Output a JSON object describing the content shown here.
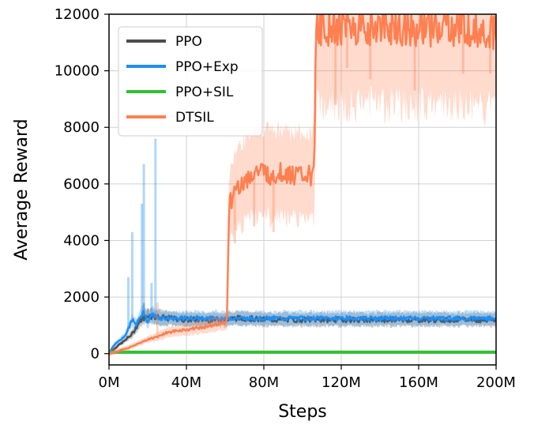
{
  "chart_data": {
    "type": "line",
    "title": "",
    "xlabel": "Steps",
    "ylabel": "Average Reward",
    "xlim": [
      0,
      200
    ],
    "ylim": [
      -400,
      12000
    ],
    "x_unit": "M steps",
    "x_ticks": [
      0,
      40,
      80,
      120,
      160,
      200
    ],
    "x_tick_labels": [
      "0M",
      "40M",
      "80M",
      "120M",
      "160M",
      "200M"
    ],
    "y_ticks": [
      0,
      2000,
      4000,
      6000,
      8000,
      10000,
      12000
    ],
    "y_tick_labels": [
      "0",
      "2000",
      "4000",
      "6000",
      "8000",
      "10000",
      "12000"
    ],
    "grid": true,
    "legend_position": "top-left",
    "series": [
      {
        "name": "PPO",
        "color": "#4d4d4d",
        "x": [
          0,
          4,
          8,
          12,
          16,
          20,
          24,
          30,
          40,
          50,
          60,
          65,
          70,
          80,
          90,
          100,
          106,
          110,
          200
        ],
        "y": [
          0,
          250,
          450,
          700,
          1150,
          1350,
          1300,
          1250,
          1200,
          1200,
          1200,
          1250,
          1250,
          1200,
          1200,
          1200,
          1200,
          1200,
          1200
        ]
      },
      {
        "name": "PPO+Exp",
        "color": "#1f8ef1",
        "x": [
          0,
          2,
          5,
          8,
          10,
          12,
          14,
          16,
          18,
          20,
          22,
          24,
          26,
          30,
          40,
          60,
          80,
          100,
          120,
          200
        ],
        "y": [
          0,
          250,
          450,
          600,
          900,
          1200,
          1000,
          1300,
          1500,
          1100,
          1400,
          1300,
          1250,
          1250,
          1250,
          1250,
          1250,
          1250,
          1250,
          1250
        ]
      },
      {
        "name": "PPO+SIL",
        "color": "#33c033",
        "x": [
          0,
          50,
          100,
          150,
          200
        ],
        "y": [
          50,
          50,
          50,
          50,
          50
        ]
      },
      {
        "name": "DTSIL",
        "color": "#ff7f50",
        "x": [
          0,
          5,
          10,
          15,
          20,
          25,
          30,
          35,
          40,
          45,
          50,
          55,
          60,
          61,
          62,
          65,
          70,
          75,
          80,
          85,
          90,
          95,
          100,
          104,
          106,
          107,
          110,
          130,
          150,
          170,
          190,
          200
        ],
        "y": [
          0,
          100,
          200,
          350,
          500,
          600,
          750,
          800,
          850,
          900,
          950,
          1050,
          1100,
          1200,
          5200,
          5800,
          6100,
          6400,
          6400,
          6300,
          6400,
          6300,
          6300,
          6300,
          6300,
          11500,
          11550,
          11550,
          11550,
          11500,
          11500,
          11300
        ]
      }
    ]
  }
}
